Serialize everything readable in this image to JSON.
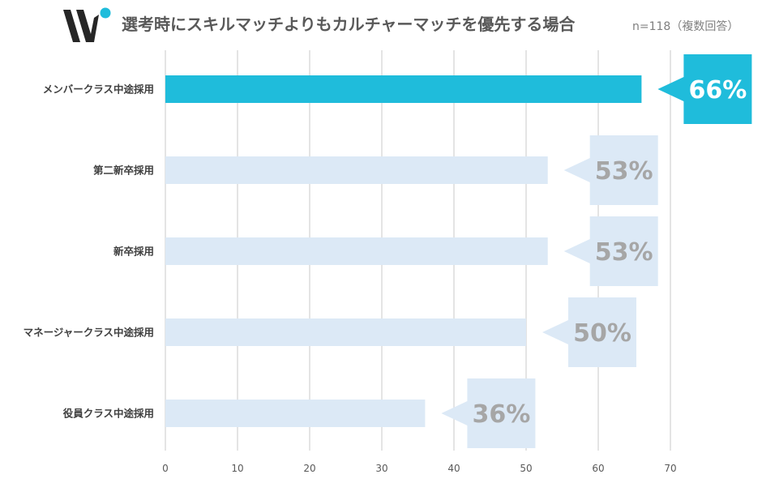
{
  "header": {
    "title": "選考時にスキルマッチよりもカルチャーマッチを優先する場合",
    "subtitle": "n=118（複数回答）"
  },
  "colors": {
    "highlight": "#1fbcdb",
    "bar": "#dce9f6",
    "callout_text_dim": "#a6a6a6",
    "callout_text_highlight": "#ffffff",
    "grid": "#d9d9d9",
    "logo_dark": "#262626",
    "logo_dot": "#1fbcdb"
  },
  "icons": {
    "logo": "brand-logo-icon"
  },
  "chart_data": {
    "type": "bar",
    "orientation": "horizontal",
    "categories": [
      "メンバークラス中途採用",
      "第二新卒採用",
      "新卒採用",
      "マネージャークラス中途採用",
      "役員クラス中途採用"
    ],
    "values": [
      66,
      53,
      53,
      50,
      36
    ],
    "value_labels": [
      "66%",
      "53%",
      "53%",
      "50%",
      "36%"
    ],
    "highlight_index": 0,
    "title": "選考時にスキルマッチよりもカルチャーマッチを優先する場合",
    "subtitle": "n=118（複数回答）",
    "xlabel": "",
    "ylabel": "",
    "xlim": [
      0,
      70
    ],
    "xticks": [
      "0",
      "10",
      "20",
      "30",
      "40",
      "50",
      "60",
      "70"
    ],
    "grid": true,
    "legend": "none"
  }
}
